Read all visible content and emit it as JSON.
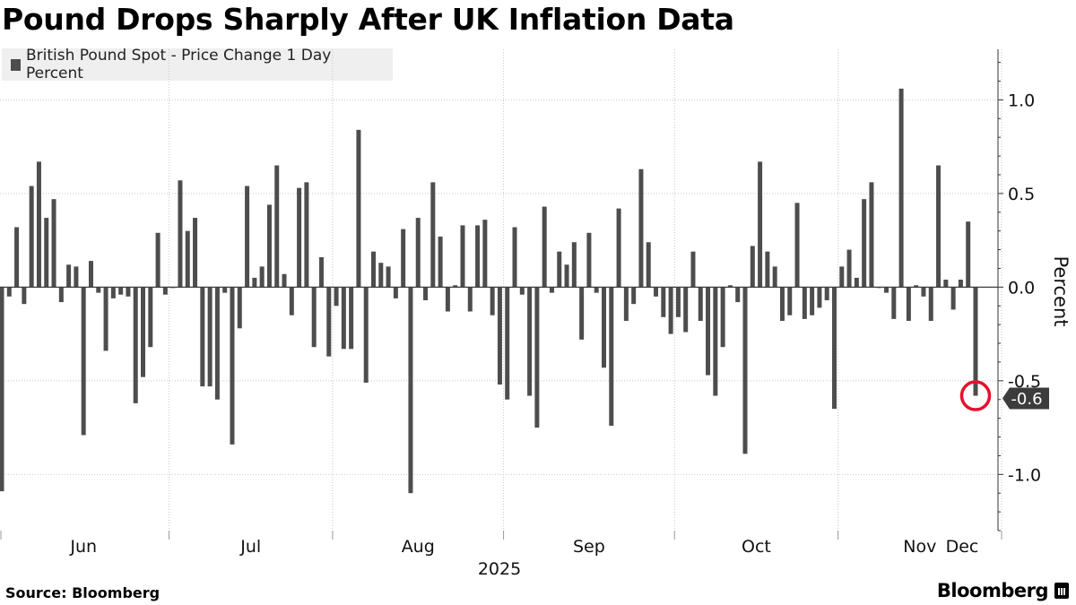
{
  "title": "Pound Drops Sharply After UK Inflation Data",
  "source": "Source: Bloomberg",
  "brand": "Bloomberg",
  "colors": {
    "bar": "#4d4d4d",
    "highlight": "#e8102e",
    "grid": "#c8c8c8",
    "zero_line": "#3c3c3c"
  },
  "chart_data": {
    "type": "bar",
    "title": "Pound Drops Sharply After UK Inflation Data",
    "series": [
      {
        "name": "British Pound Spot - Price Change 1 Day Percent",
        "values": [
          -1.09,
          -0.05,
          0.32,
          -0.09,
          0.54,
          0.67,
          0.37,
          0.47,
          -0.08,
          0.12,
          0.11,
          -0.79,
          0.14,
          -0.03,
          -0.34,
          -0.06,
          -0.04,
          -0.05,
          -0.62,
          -0.48,
          -0.32,
          0.29,
          -0.04,
          0.0,
          0.57,
          0.3,
          0.37,
          -0.53,
          -0.53,
          -0.6,
          -0.03,
          -0.84,
          -0.22,
          0.54,
          0.05,
          0.11,
          0.44,
          0.65,
          0.07,
          -0.15,
          0.53,
          0.56,
          -0.32,
          0.16,
          -0.37,
          -0.1,
          -0.33,
          -0.33,
          0.84,
          -0.51,
          0.19,
          0.13,
          0.11,
          -0.06,
          0.31,
          -1.1,
          0.37,
          -0.07,
          0.56,
          0.27,
          -0.13,
          0.01,
          0.33,
          -0.13,
          0.33,
          0.36,
          -0.15,
          -0.52,
          -0.6,
          0.32,
          -0.04,
          -0.58,
          -0.75,
          0.43,
          -0.03,
          0.19,
          0.12,
          0.24,
          -0.28,
          0.29,
          -0.03,
          -0.43,
          -0.74,
          0.42,
          -0.18,
          -0.09,
          0.63,
          0.24,
          -0.05,
          -0.16,
          -0.25,
          -0.16,
          -0.24,
          0.19,
          -0.18,
          -0.47,
          -0.58,
          -0.32,
          0.01,
          -0.08,
          -0.89,
          0.22,
          0.67,
          0.19,
          0.11,
          -0.18,
          -0.15,
          0.45,
          -0.17,
          -0.15,
          -0.11,
          -0.07,
          -0.65,
          0.11,
          0.2,
          0.05,
          0.47,
          0.56,
          0.0,
          -0.03,
          -0.17,
          1.06,
          -0.18,
          0.01,
          -0.05,
          -0.18,
          0.65,
          0.04,
          -0.12,
          0.04,
          0.35,
          -0.58
        ]
      }
    ],
    "month_labels": [
      "Jun",
      "Jul",
      "Aug",
      "Sep",
      "Oct",
      "Nov",
      "Dec"
    ],
    "month_start_index": [
      0,
      23,
      45,
      68,
      91,
      113,
      135
    ],
    "year_label": "2025",
    "ylabel": "Percent",
    "ylim": [
      -1.3,
      1.27
    ],
    "yticks": [
      {
        "value": 1.0,
        "label": "1.0"
      },
      {
        "value": 0.5,
        "label": "0.5"
      },
      {
        "value": 0.0,
        "label": "0.0"
      },
      {
        "value": -0.5,
        "label": "-0.5"
      },
      {
        "value": -1.0,
        "label": "-1.0"
      }
    ],
    "grid": true,
    "legend": "top-left",
    "latest": {
      "label": "-0.6",
      "value": -0.58,
      "highlighted": true
    }
  }
}
